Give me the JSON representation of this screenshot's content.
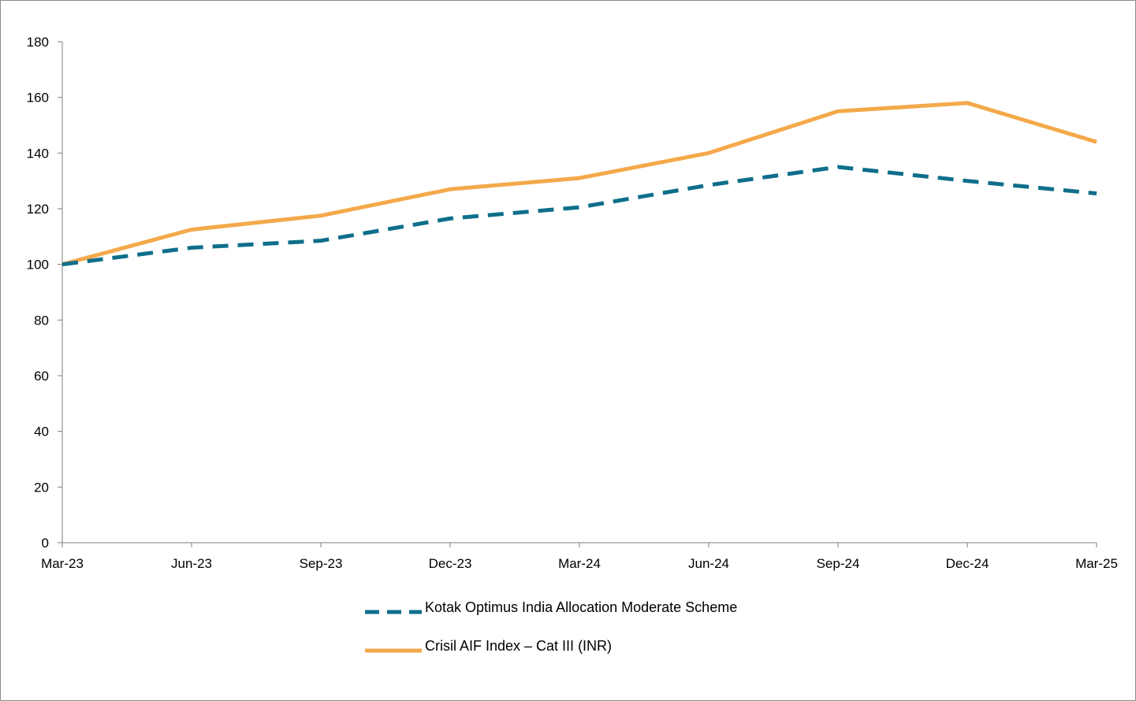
{
  "chart_data": {
    "type": "line",
    "categories": [
      "Mar-23",
      "Jun-23",
      "Sep-23",
      "Dec-23",
      "Mar-24",
      "Jun-24",
      "Sep-24",
      "Dec-24",
      "Mar-25"
    ],
    "series": [
      {
        "name": "Kotak Optimus India Allocation Moderate Scheme",
        "values": [
          100,
          106,
          108.5,
          116.5,
          120.5,
          128.5,
          135,
          130,
          125.5
        ],
        "color": "#0e6f8a",
        "style": "dashed"
      },
      {
        "name": "Crisil AIF Index – Cat III (INR)",
        "values": [
          100,
          112.5,
          117.5,
          127,
          131,
          140,
          155,
          158,
          144
        ],
        "color": "#f4a94a",
        "style": "solid"
      }
    ],
    "yticks": [
      0,
      20,
      40,
      60,
      80,
      100,
      120,
      140,
      160,
      180
    ],
    "ytick_labels": [
      "0",
      "20",
      "40",
      "60",
      "80",
      "100",
      "120",
      "140",
      "160",
      "180"
    ],
    "ylim": [
      0,
      180
    ],
    "grid": false,
    "legend_position": "bottom-center",
    "title": "",
    "xlabel": "",
    "ylabel": ""
  }
}
